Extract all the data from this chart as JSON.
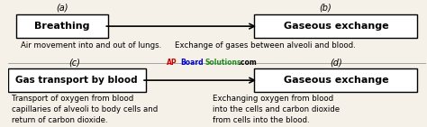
{
  "bg_color": "#f5f0e8",
  "box_color": "#ffffff",
  "box_edge_color": "#000000",
  "text_color": "#000000",
  "box_a_label": "(a)",
  "box_b_label": "(b)",
  "box_c_label": "(c)",
  "box_d_label": "(d)",
  "box_a_text": "Breathing",
  "box_b_text": "Gaseous exchange",
  "box_c_text": "Gas transport by blood",
  "box_d_text": "Gaseous exchange",
  "desc_a": "Air movement into and out of lungs.",
  "desc_b": "Exchange of gases between alveoli and blood.",
  "desc_c1": "Transport of oxygen from blood",
  "desc_c2": "capillaries of alveoli to body cells and",
  "desc_c3": "return of carbon dioxide.",
  "desc_d1": "Exchanging oxygen from blood",
  "desc_d2": "into the cells and carbon dioxide",
  "desc_d3": "from cells into the blood.",
  "fig_width": 4.74,
  "fig_height": 1.41
}
